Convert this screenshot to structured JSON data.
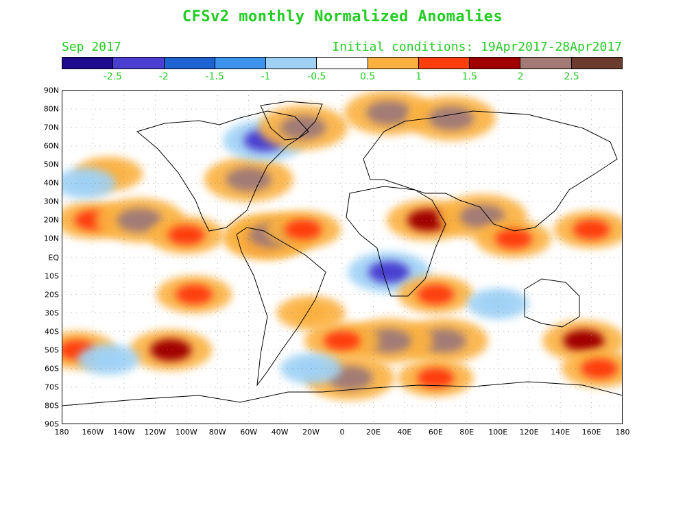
{
  "title": "CFSv2 monthly Normalized Anomalies",
  "subtitle_left": "Sep 2017",
  "subtitle_right": "Initial conditions: 19Apr2017-28Apr2017",
  "text_color": "#22cc22",
  "colorbar": {
    "colors": [
      "#1f0c8c",
      "#4a3fd1",
      "#1e63d1",
      "#3d92eb",
      "#9fd1f5",
      "#ffffff",
      "#fbb13f",
      "#ff3e0c",
      "#a00000",
      "#a37b74",
      "#6b3b2e"
    ],
    "labels": [
      "-2.5",
      "-2",
      "-1.5",
      "-1",
      "-0.5",
      "0.5",
      "1",
      "1.5",
      "2",
      "2.5"
    ]
  },
  "map": {
    "lat_labels": [
      "90N",
      "80N",
      "70N",
      "60N",
      "50N",
      "40N",
      "30N",
      "20N",
      "10N",
      "EQ",
      "10S",
      "20S",
      "30S",
      "40S",
      "50S",
      "60S",
      "70S",
      "80S",
      "90S"
    ],
    "lon_labels": [
      "180",
      "160W",
      "140W",
      "120W",
      "100W",
      "80W",
      "60W",
      "40W",
      "20W",
      "0",
      "20E",
      "40E",
      "60E",
      "80E",
      "100E",
      "120E",
      "140E",
      "160E",
      "180"
    ],
    "anomalies": [
      {
        "lon": -160,
        "lat": 20,
        "level": "1.5"
      },
      {
        "lon": -130,
        "lat": 20,
        "level": "2.5"
      },
      {
        "lon": -100,
        "lat": 12,
        "level": "1.5"
      },
      {
        "lon": -50,
        "lat": 10,
        "level": "2"
      },
      {
        "lon": -45,
        "lat": 12,
        "level": "2.5"
      },
      {
        "lon": -25,
        "lat": 15,
        "level": "1.5"
      },
      {
        "lon": -95,
        "lat": -20,
        "level": "1.5"
      },
      {
        "lon": -110,
        "lat": -50,
        "level": "2"
      },
      {
        "lon": -170,
        "lat": -50,
        "level": "1.5"
      },
      {
        "lon": -60,
        "lat": 42,
        "level": "2.5"
      },
      {
        "lon": -50,
        "lat": 63,
        "level": "-2"
      },
      {
        "lon": -150,
        "lat": 45,
        "level": "1"
      },
      {
        "lon": -165,
        "lat": 40,
        "level": "-0.5"
      },
      {
        "lon": 30,
        "lat": 78,
        "level": "2.5"
      },
      {
        "lon": 70,
        "lat": 75,
        "level": "2.5"
      },
      {
        "lon": -25,
        "lat": 70,
        "level": "2.5"
      },
      {
        "lon": 55,
        "lat": 20,
        "level": "2"
      },
      {
        "lon": 90,
        "lat": 22,
        "level": "2.5"
      },
      {
        "lon": 110,
        "lat": 10,
        "level": "1.5"
      },
      {
        "lon": 160,
        "lat": 15,
        "level": "1.5"
      },
      {
        "lon": 30,
        "lat": -8,
        "level": "-2"
      },
      {
        "lon": 60,
        "lat": -20,
        "level": "1.5"
      },
      {
        "lon": 65,
        "lat": -45,
        "level": "2.5"
      },
      {
        "lon": 30,
        "lat": -45,
        "level": "2.5"
      },
      {
        "lon": 0,
        "lat": -45,
        "level": "1.5"
      },
      {
        "lon": 155,
        "lat": -45,
        "level": "2"
      },
      {
        "lon": 165,
        "lat": -60,
        "level": "1.5"
      },
      {
        "lon": 5,
        "lat": -65,
        "level": "2.5"
      },
      {
        "lon": 60,
        "lat": -65,
        "level": "1.5"
      },
      {
        "lon": -20,
        "lat": -30,
        "level": "1"
      },
      {
        "lon": 100,
        "lat": -25,
        "level": "-0.5"
      },
      {
        "lon": -150,
        "lat": -55,
        "level": "-0.5"
      },
      {
        "lon": -20,
        "lat": -60,
        "level": "-0.5"
      }
    ]
  }
}
